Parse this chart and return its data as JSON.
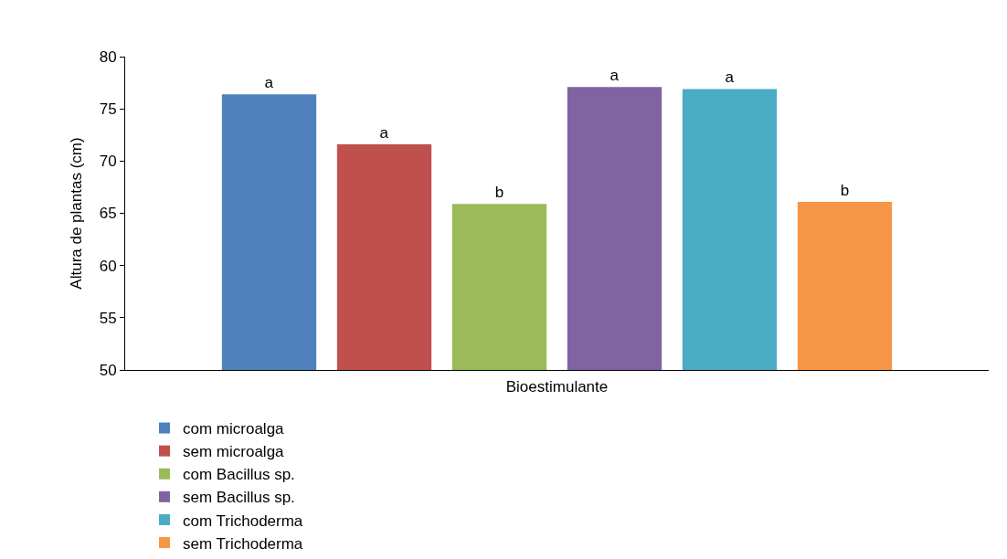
{
  "chart_data": {
    "type": "bar",
    "xlabel": "Bioestimulante",
    "ylabel": "Altura de plantas (cm)",
    "categories": [
      null
    ],
    "ylim": [
      50,
      80
    ],
    "yticks": [
      50,
      55,
      60,
      65,
      70,
      75,
      80
    ],
    "grid": false,
    "legend": "bottom",
    "tick_labels": "y",
    "series": [
      {
        "name": "com microalga",
        "color": "#4f81bd",
        "values": [
          76.4
        ],
        "value_labels": [
          "a"
        ]
      },
      {
        "name": "sem microalga",
        "color": "#c0504d",
        "values": [
          71.6
        ],
        "value_labels": [
          "a"
        ]
      },
      {
        "name": "com Bacillus sp.",
        "color": "#9bbb59",
        "values": [
          65.9
        ],
        "value_labels": [
          "b"
        ]
      },
      {
        "name": "sem Bacillus sp.",
        "color": "#8064a2",
        "values": [
          77.1
        ],
        "value_labels": [
          "a"
        ]
      },
      {
        "name": "com Trichoderma",
        "color": "#4bacc6",
        "values": [
          76.9
        ],
        "value_labels": [
          "a"
        ]
      },
      {
        "name": "sem Trichoderma",
        "color": "#f79646",
        "values": [
          66.1
        ],
        "value_labels": [
          "b"
        ]
      }
    ]
  }
}
